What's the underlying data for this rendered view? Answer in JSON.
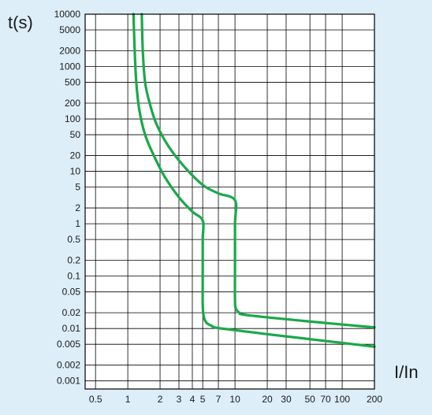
{
  "chart_data": {
    "type": "line",
    "xlabel": "I/In",
    "ylabel": "t(s)",
    "x_scale": "log",
    "y_scale": "log",
    "xlim": [
      0.4,
      200
    ],
    "ylim": [
      0.0007,
      10000
    ],
    "grid": true,
    "x_ticks": [
      {
        "value": 0.5,
        "label": "0.5"
      },
      {
        "value": 1,
        "label": "1"
      },
      {
        "value": 2,
        "label": "2"
      },
      {
        "value": 3,
        "label": "3"
      },
      {
        "value": 4,
        "label": "4"
      },
      {
        "value": 5,
        "label": "5"
      },
      {
        "value": 7,
        "label": "7"
      },
      {
        "value": 10,
        "label": "10"
      },
      {
        "value": 20,
        "label": "20"
      },
      {
        "value": 30,
        "label": "30"
      },
      {
        "value": 50,
        "label": "50"
      },
      {
        "value": 70,
        "label": "70"
      },
      {
        "value": 100,
        "label": "100"
      },
      {
        "value": 200,
        "label": "200"
      }
    ],
    "y_ticks": [
      {
        "value": 10000,
        "label": "10000"
      },
      {
        "value": 5000,
        "label": "5000"
      },
      {
        "value": 2000,
        "label": "2000"
      },
      {
        "value": 1000,
        "label": "1000"
      },
      {
        "value": 500,
        "label": "500"
      },
      {
        "value": 200,
        "label": "200"
      },
      {
        "value": 100,
        "label": "100"
      },
      {
        "value": 50,
        "label": "50"
      },
      {
        "value": 20,
        "label": "20"
      },
      {
        "value": 10,
        "label": "10"
      },
      {
        "value": 5,
        "label": "5"
      },
      {
        "value": 2,
        "label": "2"
      },
      {
        "value": 1,
        "label": "1"
      },
      {
        "value": 0.5,
        "label": "0.5"
      },
      {
        "value": 0.2,
        "label": "0.2"
      },
      {
        "value": 0.1,
        "label": "0.1"
      },
      {
        "value": 0.05,
        "label": "0.05"
      },
      {
        "value": 0.02,
        "label": "0.02"
      },
      {
        "value": 0.01,
        "label": "0.01"
      },
      {
        "value": 0.005,
        "label": "0.005"
      },
      {
        "value": 0.002,
        "label": "0.002"
      },
      {
        "value": 0.001,
        "label": "0.001"
      }
    ],
    "series": [
      {
        "color": "#1aa84a",
        "points": [
          [
            1.13,
            10000
          ],
          [
            1.16,
            2000
          ],
          [
            1.2,
            500
          ],
          [
            1.28,
            150
          ],
          [
            1.45,
            50
          ],
          [
            1.75,
            20
          ],
          [
            2.2,
            8
          ],
          [
            3.0,
            3.2
          ],
          [
            4.0,
            1.7
          ],
          [
            5.0,
            1.15
          ],
          [
            5.0,
            0.5
          ],
          [
            5.0,
            0.1
          ],
          [
            5.0,
            0.03
          ],
          [
            5.08,
            0.018
          ],
          [
            5.4,
            0.013
          ],
          [
            6.2,
            0.011
          ],
          [
            7.0,
            0.0102
          ],
          [
            20,
            0.0078
          ],
          [
            60,
            0.006
          ],
          [
            200,
            0.0045
          ]
        ]
      },
      {
        "color": "#1aa84a",
        "points": [
          [
            1.35,
            10000
          ],
          [
            1.38,
            2000
          ],
          [
            1.45,
            500
          ],
          [
            1.6,
            200
          ],
          [
            1.85,
            80
          ],
          [
            2.4,
            30
          ],
          [
            3.4,
            12
          ],
          [
            5.0,
            5.5
          ],
          [
            7.0,
            3.8
          ],
          [
            10.0,
            2.8
          ],
          [
            10.0,
            1
          ],
          [
            10.0,
            0.2
          ],
          [
            10.0,
            0.035
          ],
          [
            10.2,
            0.024
          ],
          [
            11.0,
            0.02
          ],
          [
            13.0,
            0.018
          ],
          [
            50,
            0.0136
          ],
          [
            200,
            0.0105
          ]
        ]
      }
    ]
  }
}
